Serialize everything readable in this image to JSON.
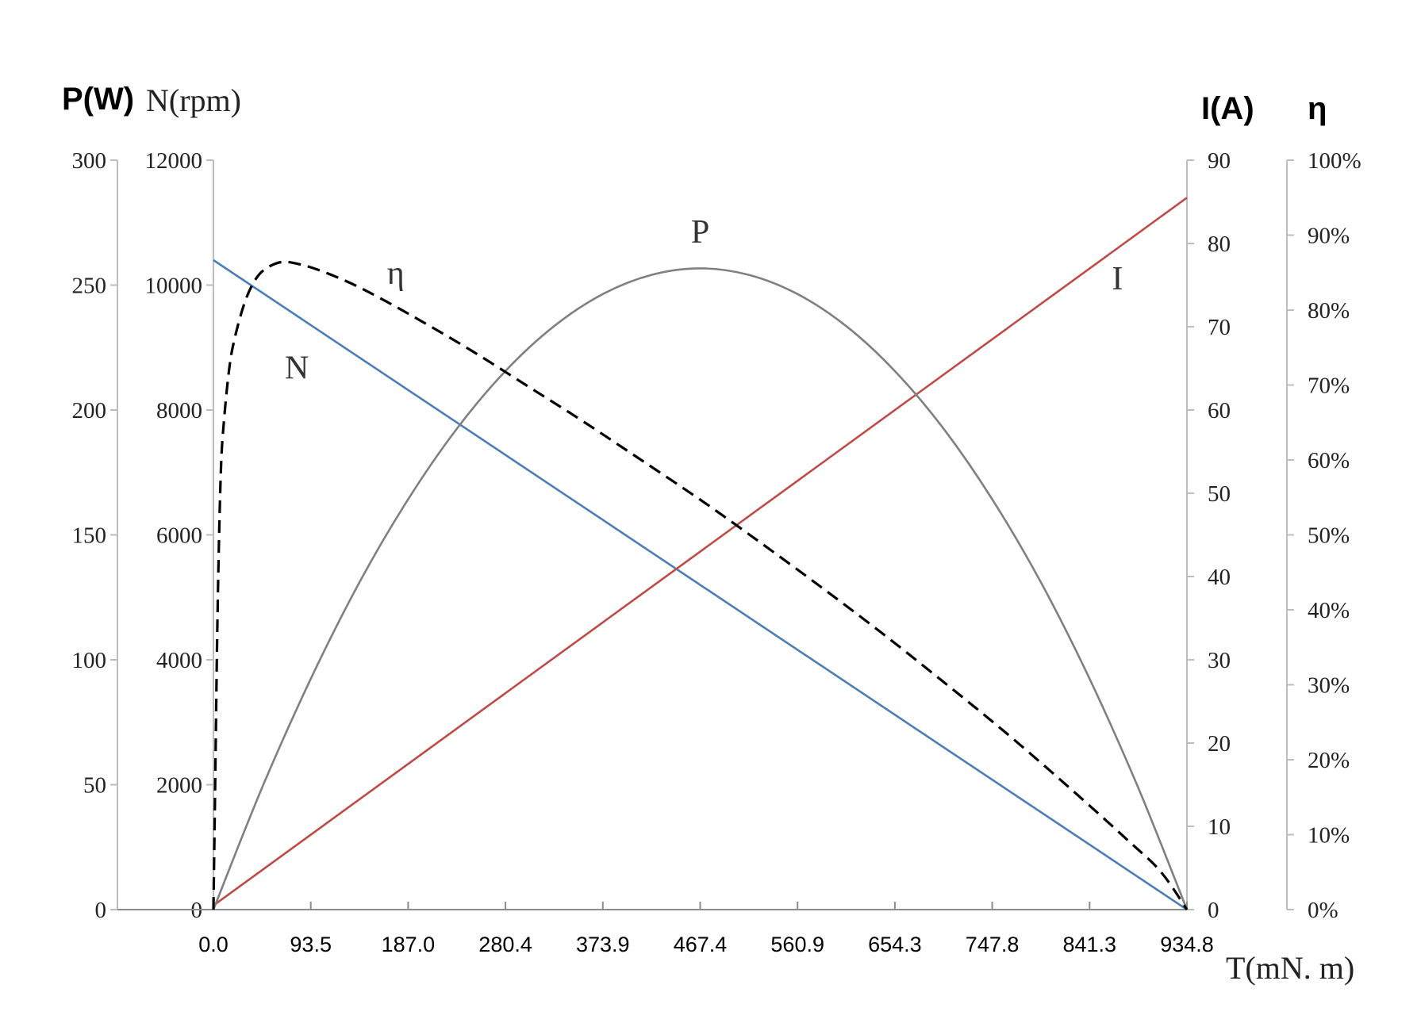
{
  "chart_data": {
    "type": "line",
    "axis_titles": {
      "power": "P(W)",
      "speed": "N(rpm)",
      "current": "I(A)",
      "efficiency": "η",
      "torque": "T(mN. m)"
    },
    "x_ticks": [
      "0.0",
      "93.5",
      "187.0",
      "280.4",
      "373.9",
      "467.4",
      "560.9",
      "654.3",
      "747.8",
      "841.3",
      "934.8"
    ],
    "xlim": [
      0,
      934.8
    ],
    "axes": {
      "power": {
        "range": [
          0,
          300
        ],
        "ticks": [
          "0",
          "50",
          "100",
          "150",
          "200",
          "250",
          "300"
        ]
      },
      "speed": {
        "range": [
          0,
          12000
        ],
        "ticks": [
          "0",
          "2000",
          "4000",
          "6000",
          "8000",
          "10000",
          "12000"
        ]
      },
      "current": {
        "range": [
          0,
          90
        ],
        "ticks": [
          "0",
          "10",
          "20",
          "30",
          "40",
          "50",
          "60",
          "70",
          "80",
          "90"
        ]
      },
      "efficiency": {
        "range": [
          0,
          100
        ],
        "ticks": [
          "0%",
          "10%",
          "20%",
          "30%",
          "40%",
          "50%",
          "60%",
          "70%",
          "80%",
          "90%",
          "100%"
        ]
      }
    },
    "grid": false,
    "series": [
      {
        "name": "N",
        "axis": "speed",
        "color": "#4a7ebb",
        "style": "solid",
        "x": [
          0,
          934.8
        ],
        "y": [
          10400,
          0
        ]
      },
      {
        "name": "I",
        "axis": "current",
        "color": "#be4b48",
        "style": "solid",
        "x": [
          0,
          934.8
        ],
        "y": [
          0.5,
          85.5
        ]
      },
      {
        "name": "P",
        "axis": "power",
        "color": "#808080",
        "style": "solid",
        "x": [
          0,
          46.7,
          93.5,
          140.2,
          187,
          233.7,
          280.4,
          327.2,
          373.9,
          420.7,
          467.4,
          514.1,
          560.9,
          607.6,
          654.3,
          701.1,
          747.8,
          794.6,
          841.3,
          888,
          934.8
        ],
        "y": [
          0,
          48.8,
          92.4,
          131,
          164.3,
          192.5,
          215.6,
          233.6,
          246.4,
          254.1,
          256.7,
          254.1,
          246.4,
          233.6,
          215.6,
          192.5,
          164.3,
          131,
          92.4,
          48.8,
          0
        ]
      },
      {
        "name": "η",
        "axis": "efficiency",
        "color": "#000000",
        "style": "dashed",
        "x": [
          0,
          2,
          4,
          7,
          10,
          15,
          20,
          30,
          40,
          50,
          65,
          80,
          100,
          130,
          160,
          200,
          250,
          300,
          350,
          400,
          467.4,
          520,
          580,
          640,
          700,
          760,
          820,
          880,
          910,
          934.8
        ],
        "y": [
          0,
          20,
          40,
          58,
          65,
          72,
          76,
          81,
          84,
          85.5,
          86.4,
          86.2,
          85.4,
          83.7,
          81.6,
          78.5,
          74.4,
          70,
          65.6,
          61,
          54.7,
          49.5,
          43.4,
          37.1,
          30.5,
          23.7,
          16.5,
          9,
          5,
          0
        ]
      }
    ],
    "annotations": [
      {
        "text": "P",
        "x": 467.4,
        "axis": "power",
        "y": 267
      },
      {
        "text": "η",
        "x": 175,
        "axis": "efficiency",
        "y": 83.5
      },
      {
        "text": "N",
        "x": 80,
        "axis": "speed",
        "y": 8500
      },
      {
        "text": "I",
        "x": 868,
        "axis": "current",
        "y": 74.5
      }
    ]
  }
}
